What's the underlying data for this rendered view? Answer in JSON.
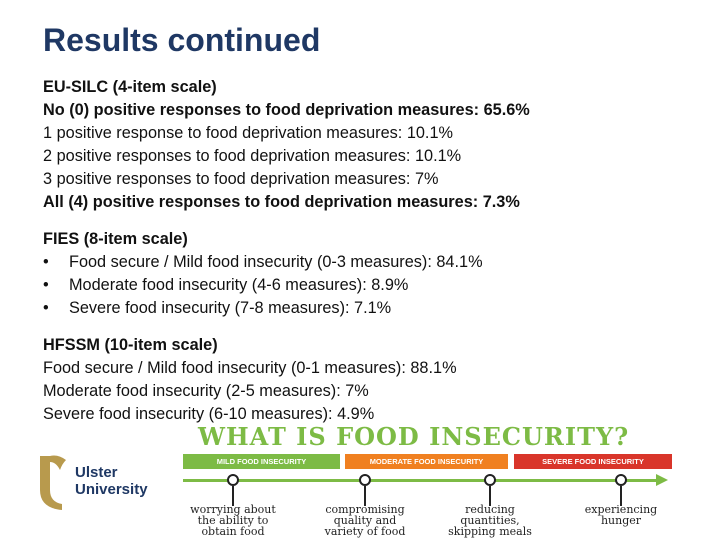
{
  "title": "Results continued",
  "eusilc": {
    "heading": "EU-SILC (4-item scale)",
    "lines": [
      "No (0) positive responses to food deprivation measures: 65.6%",
      "1 positive response to food deprivation measures: 10.1%",
      "2 positive responses to food deprivation measures: 10.1%",
      "3 positive responses to food deprivation measures: 7%",
      "All (4) positive responses to food deprivation measures: 7.3%"
    ]
  },
  "fies": {
    "heading": "FIES (8-item scale)",
    "bullet": "•",
    "items": [
      "Food secure / Mild food insecurity (0-3 measures): 84.1%",
      "Moderate food insecurity (4-6 measures): 8.9%",
      "Severe food insecurity (7-8 measures): 7.1%"
    ]
  },
  "hfssm": {
    "heading": "HFSSM (10-item scale)",
    "lines": [
      "Food secure / Mild food insecurity (0-1 measures): 88.1%",
      "Moderate food insecurity (2-5 measures): 7%",
      "Severe food insecurity (6-10 measures): 4.9%"
    ]
  },
  "logo": {
    "line1": "Ulster",
    "line2": "University",
    "color": "#b89a4d"
  },
  "infographic": {
    "title": "WHAT IS FOOD INSECURITY?",
    "categories": [
      "MILD FOOD INSECURITY",
      "MODERATE FOOD INSECURITY",
      "SEVERE FOOD INSECURITY"
    ],
    "category_colors": [
      "#7dbb45",
      "#f08020",
      "#d9352a"
    ],
    "stages": [
      [
        "worrying about",
        "the ability to",
        "obtain food"
      ],
      [
        "compromising",
        "quality and",
        "variety of food"
      ],
      [
        "reducing",
        "quantities,",
        "skipping meals"
      ],
      [
        "experiencing",
        "hunger"
      ]
    ]
  }
}
